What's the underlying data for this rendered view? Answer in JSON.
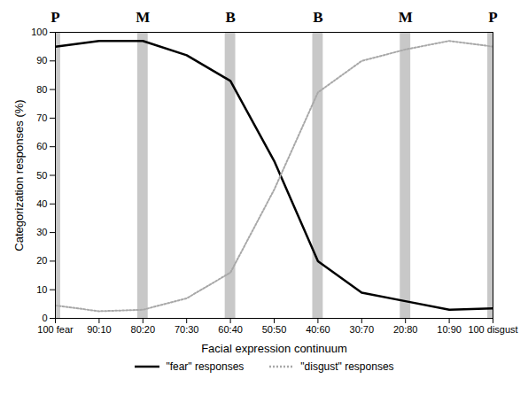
{
  "chart_data": {
    "type": "line",
    "x_label": "Facial expression continuum",
    "y_label": "Categorization responses (%)",
    "categories": [
      "100 fear",
      "90:10",
      "80:20",
      "70:30",
      "60:40",
      "50:50",
      "40:60",
      "30:70",
      "20:80",
      "10:90",
      "100 disgust"
    ],
    "series": [
      {
        "name": "\"fear\" responses",
        "color": "#000000",
        "line_style": "solid",
        "values": [
          95,
          97,
          97,
          92,
          83,
          55,
          20,
          9,
          6,
          3,
          3.5
        ]
      },
      {
        "name": "\"disgust\" responses",
        "color": "#a8a8a8",
        "line_style": "dotted",
        "values": [
          4.5,
          2.5,
          3,
          7,
          16,
          45,
          79,
          90,
          94,
          97,
          95
        ]
      }
    ],
    "ylim": [
      0,
      100
    ],
    "yticks": [
      0,
      10,
      20,
      30,
      40,
      50,
      60,
      70,
      80,
      90,
      100
    ],
    "grid": false,
    "legend": "bottom",
    "annotations": [
      {
        "x": "100 fear",
        "label": "P"
      },
      {
        "x": "80:20",
        "label": "M"
      },
      {
        "x": "60:40",
        "label": "B"
      },
      {
        "x": "40:60",
        "label": "B"
      },
      {
        "x": "20:80",
        "label": "M"
      },
      {
        "x": "100 disgust",
        "label": "P"
      }
    ]
  }
}
